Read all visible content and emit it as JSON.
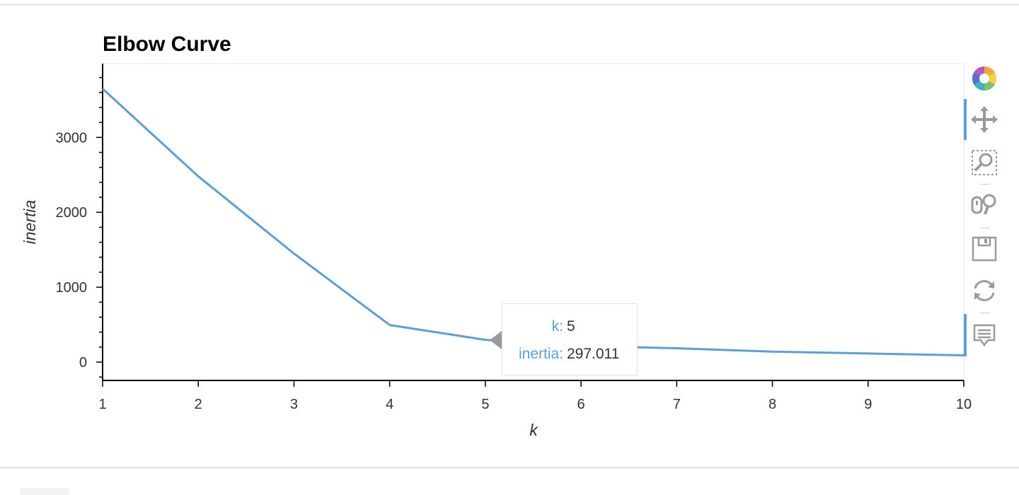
{
  "chart_data": {
    "type": "line",
    "title": "Elbow Curve",
    "xlabel": "k",
    "ylabel": "inertia",
    "x": [
      1,
      2,
      3,
      4,
      5,
      6,
      7,
      8,
      9,
      10
    ],
    "series": [
      {
        "values": [
          3650,
          2480,
          1450,
          495,
          297.011,
          215,
          185,
          140,
          115,
          90
        ],
        "color": "#5aa0d6"
      }
    ],
    "xlim": [
      1,
      10
    ],
    "ylim": [
      -245,
      3985
    ],
    "xticks": [
      1,
      2,
      3,
      4,
      5,
      6,
      7,
      8,
      9,
      10
    ],
    "yticks": [
      0,
      1000,
      2000,
      3000
    ],
    "grid": false,
    "legend": "none"
  },
  "tooltip": {
    "k_label": "k:",
    "k_value": "5",
    "inertia_label": "inertia:",
    "inertia_value": "297.011"
  },
  "toolbar": {
    "tools": [
      {
        "name": "bokeh-logo-icon",
        "active": false
      },
      {
        "name": "pan-icon",
        "active": true
      },
      {
        "name": "box-zoom-icon",
        "active": false
      },
      {
        "name": "wheel-zoom-icon",
        "active": false
      },
      {
        "name": "save-icon",
        "active": false
      },
      {
        "name": "reset-icon",
        "active": false
      },
      {
        "name": "hover-icon",
        "active": true
      }
    ]
  }
}
